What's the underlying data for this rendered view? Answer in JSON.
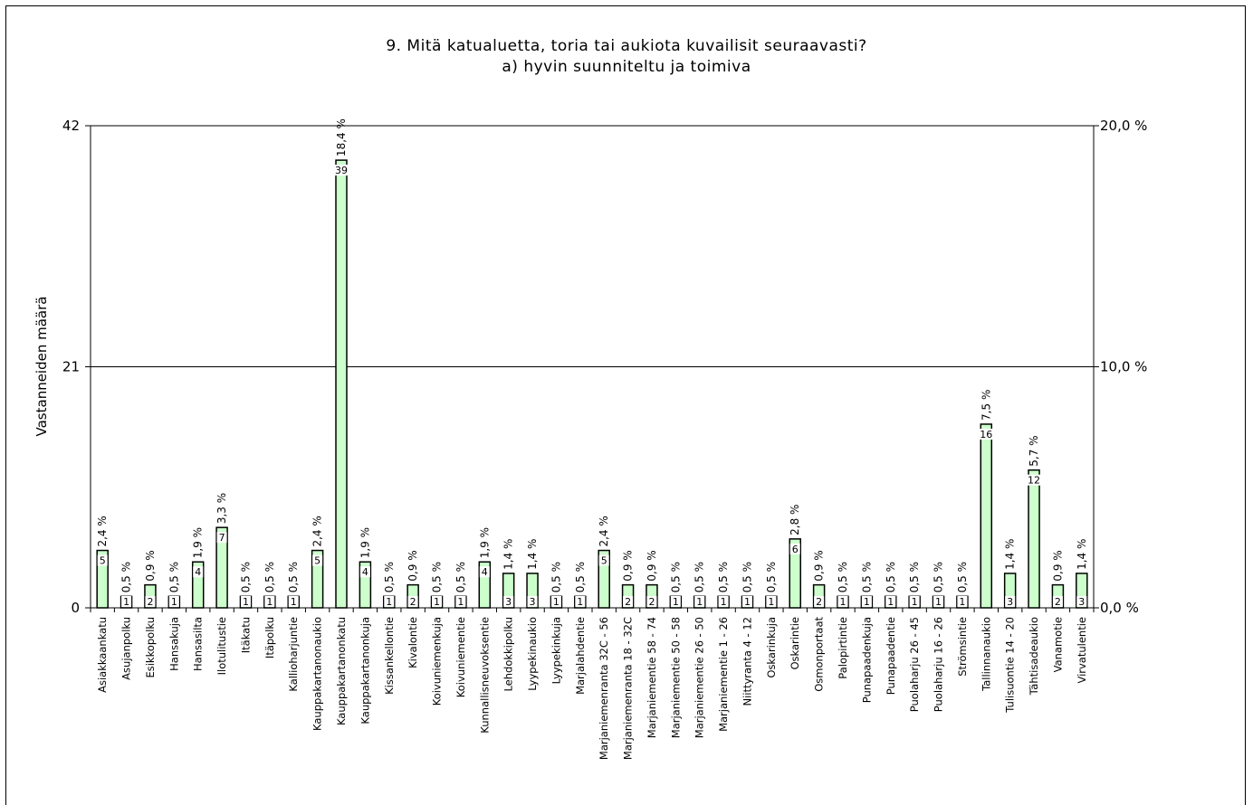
{
  "chart_data": {
    "type": "bar",
    "title": "9. Mitä katualuetta, toria tai aukiota kuvailisit seuraavasti?",
    "subtitle": "a) hyvin suunniteltu ja toimiva",
    "ylabel": "Vastanneiden määrä",
    "ylim": [
      0,
      42
    ],
    "y_ticks": [
      "0",
      "21",
      "42"
    ],
    "y2lim": [
      0,
      20
    ],
    "y2_ticks": [
      "0,0 %",
      "10,0 %",
      "20,0 %"
    ],
    "grid": true,
    "bar_color": "#ccffcc",
    "categories": [
      "Asiakkaankatu",
      "Asujanpolku",
      "Esikkopolku",
      "Hansakuja",
      "Hansasilta",
      "Ilotulitustie",
      "Itäkatu",
      "Itäpolku",
      "Kallioharjuntie",
      "Kauppakartanonaukio",
      "Kauppakartanonkatu",
      "Kauppakartanonkuja",
      "Kissankellontie",
      "Kivalontie",
      "Koivuniemenkuja",
      "Koivuniementie",
      "Kunnallisneuvoksentie",
      "Lehdokkipolku",
      "Lyypekinaukio",
      "Lyypekinkuja",
      "Marjalahdentie",
      "Marjaniemenranta 32C - 56",
      "Marjaniemenranta 18 - 32C",
      "Marjaniementie 58 - 74",
      "Marjaniementie 50 - 58",
      "Marjaniementie 26 - 50",
      "Marjaniementie 1 - 26",
      "Niittyranta 4 - 12",
      "Oskarinkuja",
      "Oskarintie",
      "Osmonportaat",
      "Palopirtintie",
      "Punapaadenkuja",
      "Punapaadentie",
      "Puolaharju 26 - 45",
      "Puolaharju 16 - 26",
      "Strömsintie",
      "Tallinnanaukio",
      "Tulisuontie 14 - 20",
      "Tähtisadeaukio",
      "Vanamotie",
      "Virvatulentie"
    ],
    "values": [
      5,
      1,
      2,
      1,
      4,
      7,
      1,
      1,
      1,
      5,
      39,
      4,
      1,
      2,
      1,
      1,
      4,
      3,
      3,
      1,
      1,
      5,
      2,
      2,
      1,
      1,
      1,
      1,
      1,
      6,
      2,
      1,
      1,
      1,
      1,
      1,
      1,
      16,
      3,
      12,
      2,
      3
    ],
    "percent_labels": [
      "2,4 %",
      "0,5 %",
      "0,9 %",
      "0,5 %",
      "1,9 %",
      "3,3 %",
      "0,5 %",
      "0,5 %",
      "0,5 %",
      "2,4 %",
      "18,4 %",
      "1,9 %",
      "0,5 %",
      "0,9 %",
      "0,5 %",
      "0,5 %",
      "1,9 %",
      "1,4 %",
      "1,4 %",
      "0,5 %",
      "0,5 %",
      "2,4 %",
      "0,9 %",
      "0,9 %",
      "0,5 %",
      "0,5 %",
      "0,5 %",
      "0,5 %",
      "0,5 %",
      "2,8 %",
      "0,9 %",
      "0,5 %",
      "0,5 %",
      "0,5 %",
      "0,5 %",
      "0,5 %",
      "0,5 %",
      "7,5 %",
      "1,4 %",
      "5,7 %",
      "0,9 %",
      "1,4 %"
    ]
  }
}
